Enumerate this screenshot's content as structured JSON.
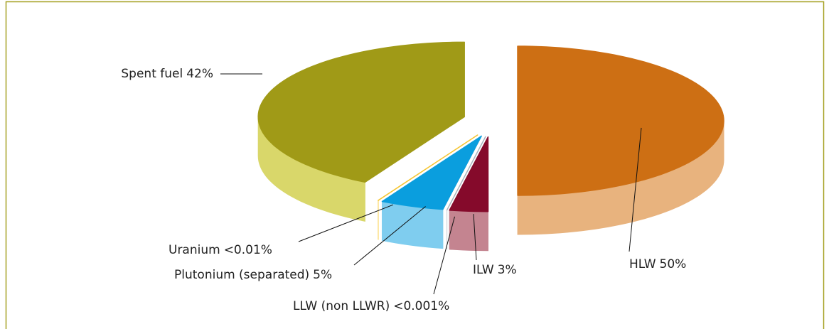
{
  "chart_data": {
    "type": "pie",
    "categories": [
      "HLW",
      "ILW",
      "LLW (non LLWR)",
      "Plutonium (separated)",
      "Uranium",
      "Spent fuel"
    ],
    "values": [
      50,
      3,
      0.001,
      5,
      0.01,
      42
    ],
    "value_labels": [
      "50%",
      "3%",
      "<0.001%",
      "5%",
      "<0.01%",
      "42%"
    ],
    "colors": [
      "#cd6f14",
      "#850a2b",
      "#a8b4be",
      "#0a9ede",
      "#f5c430",
      "#a09a17"
    ],
    "side_colors": [
      "#e8b37e",
      "#c48490",
      "#c8d0d6",
      "#7fcdef",
      "#fbd764",
      "#d9d76a"
    ]
  }
}
